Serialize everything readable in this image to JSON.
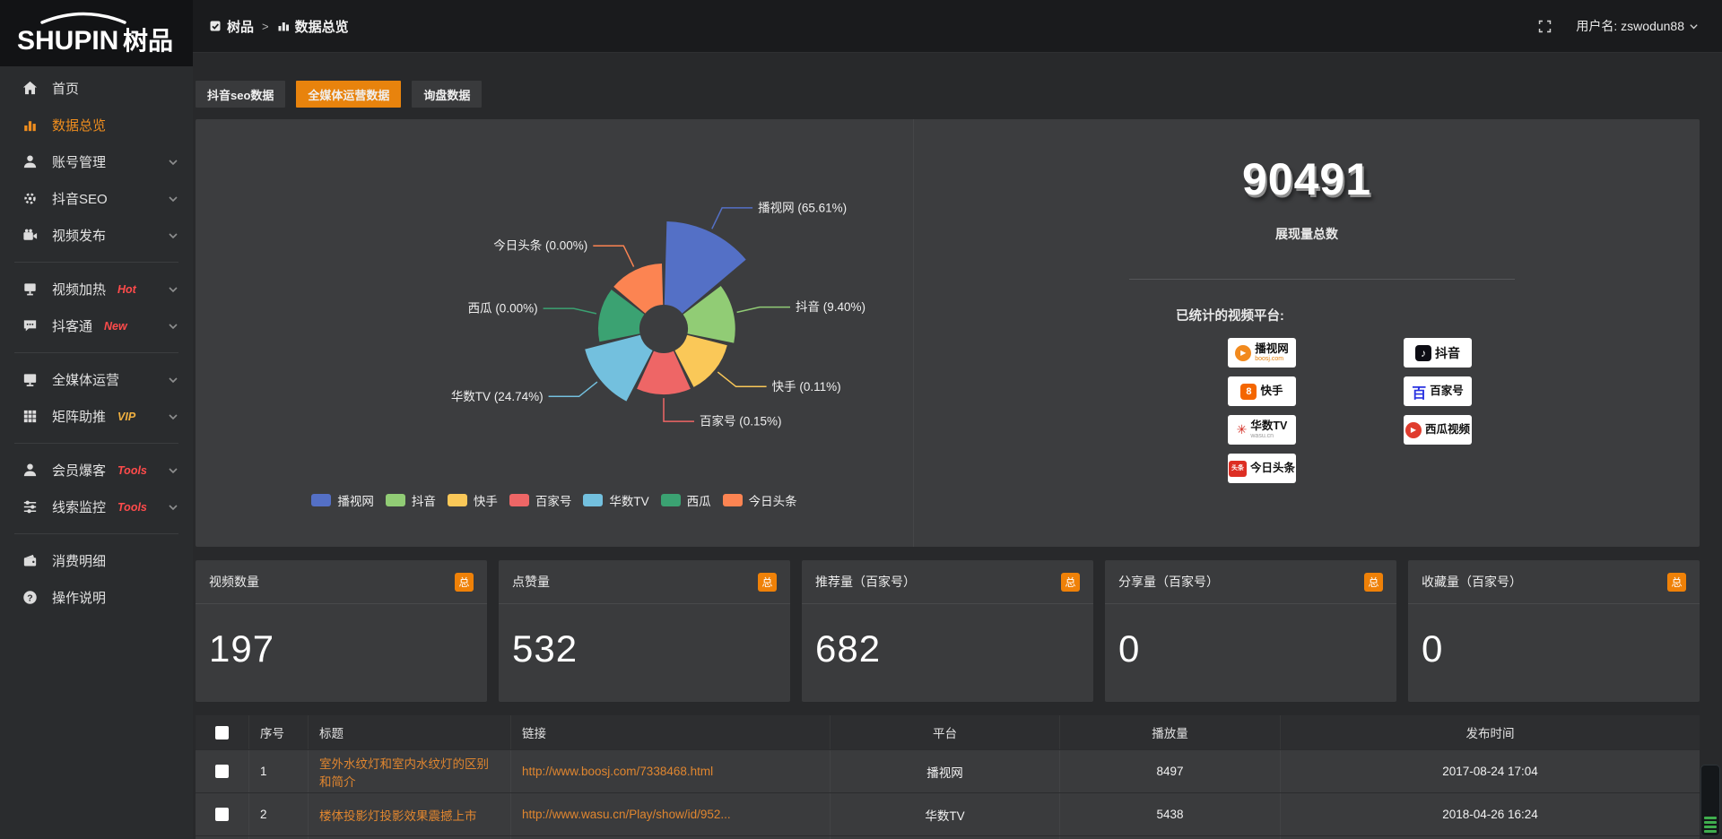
{
  "colors": {
    "accent": "#e8830d",
    "link_text": "#e0862f",
    "hot_badge": "#ff4b4b",
    "vip_badge": "#f0b040"
  },
  "logo": {
    "latin": "SHUPIN",
    "cn": "树品"
  },
  "topbar": {
    "breadcrumb_root": "树品",
    "breadcrumb_sep": ">",
    "breadcrumb_current": "数据总览",
    "username": "用户名: zswodun88"
  },
  "sidebar": {
    "items": [
      {
        "label": "首页"
      },
      {
        "label": "数据总览"
      },
      {
        "label": "账号管理"
      },
      {
        "label": "抖音SEO"
      },
      {
        "label": "视频发布"
      },
      {
        "label": "视频加热",
        "badge": "Hot"
      },
      {
        "label": "抖客通",
        "badge": "New"
      },
      {
        "label": "全媒体运营"
      },
      {
        "label": "矩阵助推",
        "badge": "VIP"
      },
      {
        "label": "会员爆客",
        "badge": "Tools"
      },
      {
        "label": "线索监控",
        "badge": "Tools"
      },
      {
        "label": "消费明细"
      },
      {
        "label": "操作说明"
      }
    ]
  },
  "tabs": {
    "items": [
      {
        "label": "抖音seo数据"
      },
      {
        "label": "全媒体运营数据"
      },
      {
        "label": "询盘数据"
      }
    ],
    "active_index": 1
  },
  "chart_data": {
    "type": "pie",
    "variant": "nightingale_rose",
    "legend_position": "bottom",
    "label_format": "{name} ({percent}%)",
    "items": [
      {
        "name": "播视网",
        "percent": 65.61,
        "color": "#5470c6"
      },
      {
        "name": "抖音",
        "percent": 9.4,
        "color": "#91cc75"
      },
      {
        "name": "快手",
        "percent": 0.11,
        "color": "#fac858"
      },
      {
        "name": "百家号",
        "percent": 0.15,
        "color": "#ee6666"
      },
      {
        "name": "华数TV",
        "percent": 24.74,
        "color": "#73c0de"
      },
      {
        "name": "西瓜",
        "percent": 0.0,
        "color": "#3ba272"
      },
      {
        "name": "今日头条",
        "percent": 0.0,
        "color": "#fc8452"
      }
    ]
  },
  "summary": {
    "total": "90491",
    "total_label": "展现量总数",
    "platforms_title": "已统计的视频平台:",
    "platforms_left": [
      {
        "name": "播视网",
        "sub": "boosj.com",
        "glyph": "▶"
      },
      {
        "name": "快手",
        "sub": "",
        "glyph": "8"
      },
      {
        "name": "华数TV",
        "sub": "wasu.cn",
        "glyph": "✳"
      },
      {
        "name": "今日头条",
        "sub": "",
        "glyph": "头条"
      }
    ],
    "platforms_right": [
      {
        "name": "抖音",
        "sub": "",
        "glyph": "♪"
      },
      {
        "name": "百家号",
        "sub": "",
        "glyph": "百"
      },
      {
        "name": "西瓜视频",
        "sub": "",
        "glyph": "▶"
      }
    ]
  },
  "stat_cards": [
    {
      "label": "视频数量",
      "badge": "总",
      "value": "197"
    },
    {
      "label": "点赞量",
      "badge": "总",
      "value": "532"
    },
    {
      "label": "推荐量（百家号）",
      "badge": "总",
      "value": "682"
    },
    {
      "label": "分享量（百家号）",
      "badge": "总",
      "value": "0"
    },
    {
      "label": "收藏量（百家号）",
      "badge": "总",
      "value": "0"
    }
  ],
  "table": {
    "columns": [
      "序号",
      "标题",
      "链接",
      "平台",
      "播放量",
      "发布时间"
    ],
    "rows": [
      {
        "index": "1",
        "title": "室外水纹灯和室内水纹灯的区别和简介",
        "link": "http://www.boosj.com/7338468.html",
        "platform": "播视网",
        "views": "8497",
        "published": "2017-08-24 17:04"
      },
      {
        "index": "2",
        "title": "楼体投影灯投影效果震撼上市",
        "link": "http://www.wasu.cn/Play/show/id/952...",
        "platform": "华数TV",
        "views": "5438",
        "published": "2018-04-26 16:24"
      }
    ]
  }
}
